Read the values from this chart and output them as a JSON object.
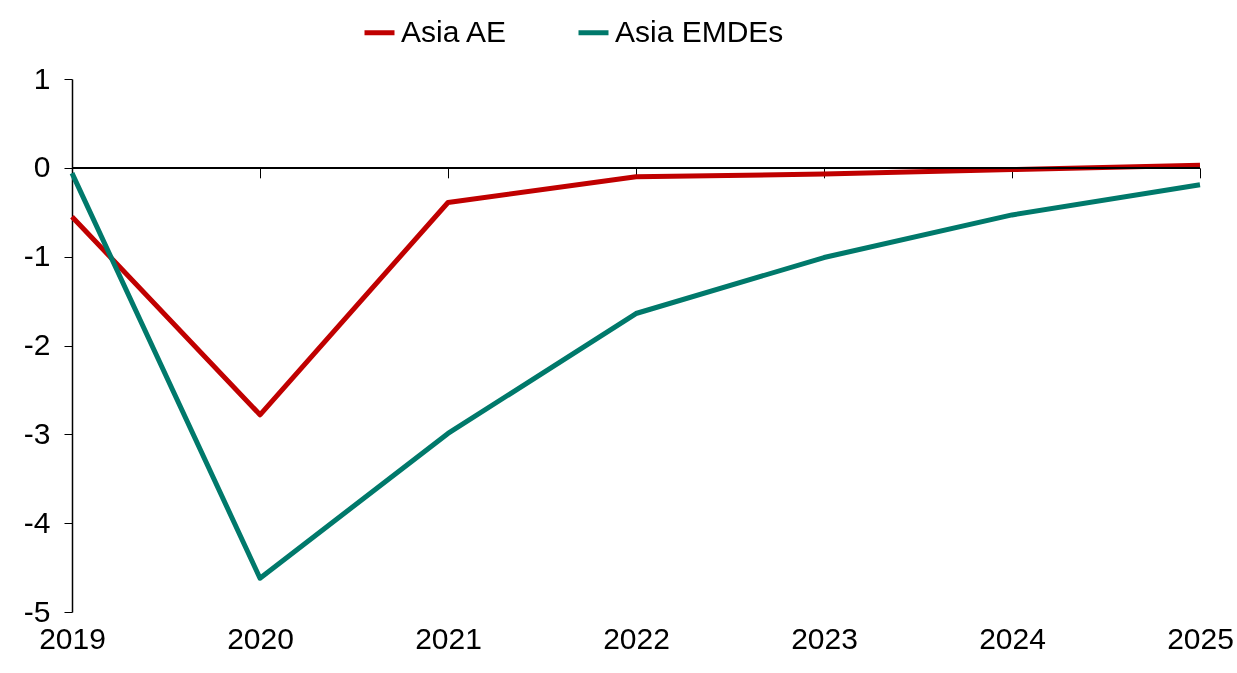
{
  "chart_data": {
    "type": "line",
    "categories": [
      "2019",
      "2020",
      "2021",
      "2022",
      "2023",
      "2024",
      "2025"
    ],
    "series": [
      {
        "name": "Asia AE",
        "color": "#c00000",
        "values": [
          -0.55,
          -2.78,
          -0.39,
          -0.1,
          -0.07,
          -0.02,
          0.03
        ]
      },
      {
        "name": "Asia EMDEs",
        "color": "#00796b",
        "values": [
          -0.06,
          -4.62,
          -2.99,
          -1.64,
          -1.01,
          -0.53,
          -0.19
        ]
      }
    ],
    "ylim": [
      -5,
      1
    ],
    "yticks": [
      -5,
      -4,
      -3,
      -2,
      -1,
      0,
      1
    ],
    "ref_lines": [
      {
        "axis": "y",
        "value": 0,
        "color": "#000000"
      }
    ],
    "grid": false,
    "legend": "top",
    "marker": "none",
    "line_style": "solid"
  }
}
